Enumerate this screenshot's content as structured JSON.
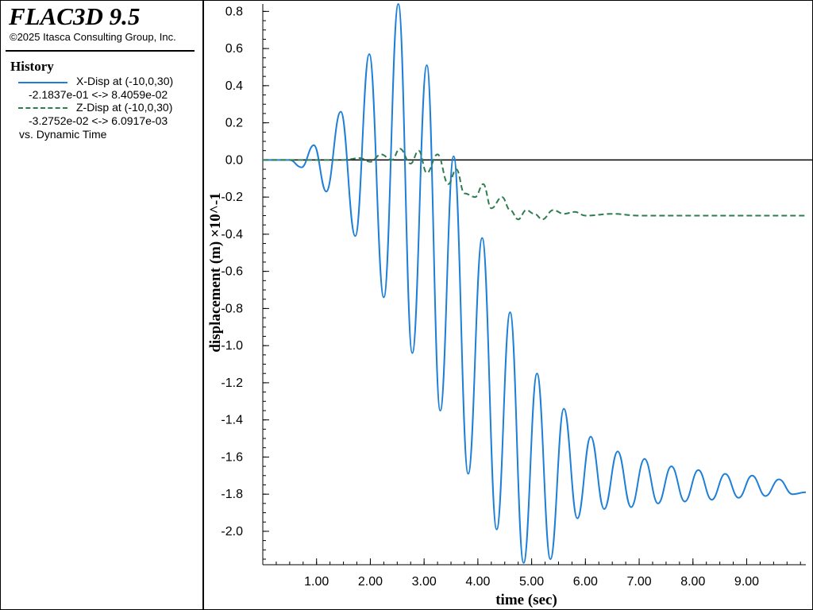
{
  "header": {
    "app_title": "FLAC3D 9.5",
    "copyright": "©2025 Itasca Consulting Group, Inc."
  },
  "legend": {
    "heading": "History",
    "entries": [
      {
        "name": "X-Disp at (-10,0,30)",
        "range": "-2.1837e-01 <->  8.4059e-02",
        "color": "#1e7fd8",
        "style": "solid"
      },
      {
        "name": "Z-Disp at (-10,0,30)",
        "range": "-3.2752e-02 <->  6.0917e-03",
        "color": "#2e7d4f",
        "style": "dashed"
      }
    ],
    "vs": "vs. Dynamic Time"
  },
  "chart_data": {
    "type": "line",
    "xlabel": "time (sec)",
    "ylabel": "displacement (m) ×10^-1",
    "xlim": [
      0,
      10.1
    ],
    "ylim": [
      -2.18,
      0.84
    ],
    "xticks": [
      1.0,
      2.0,
      3.0,
      4.0,
      5.0,
      6.0,
      7.0,
      8.0,
      9.0
    ],
    "xtick_labels": [
      "1.00",
      "2.00",
      "3.00",
      "4.00",
      "5.00",
      "6.00",
      "7.00",
      "8.00",
      "9.00"
    ],
    "yticks": [
      0.8,
      0.6,
      0.4,
      0.2,
      0.0,
      -0.2,
      -0.4,
      -0.6,
      -0.8,
      -1.0,
      -1.2,
      -1.4,
      -1.6,
      -1.8,
      -2.0
    ],
    "ytick_labels": [
      "0.8",
      "0.6",
      "0.4",
      "0.2",
      "0.0",
      "-0.2",
      "-0.4",
      "-0.6",
      "-0.8",
      "-1.0",
      "-1.2",
      "-1.4",
      "-1.6",
      "-1.8",
      "-2.0"
    ],
    "zero_line": true,
    "series": [
      {
        "name": "X-Disp at (-10,0,30)",
        "color": "#1e7fd8",
        "style": "solid",
        "x": [
          0.0,
          0.5,
          0.72,
          0.95,
          1.18,
          1.45,
          1.72,
          1.98,
          2.25,
          2.52,
          2.78,
          3.05,
          3.3,
          3.55,
          3.82,
          4.08,
          4.35,
          4.6,
          4.85,
          5.1,
          5.35,
          5.6,
          5.85,
          6.1,
          6.35,
          6.6,
          6.85,
          7.1,
          7.35,
          7.6,
          7.85,
          8.1,
          8.35,
          8.6,
          8.85,
          9.1,
          9.35,
          9.6,
          9.85,
          10.1
        ],
        "y": [
          0.0,
          0.0,
          -0.04,
          0.08,
          -0.17,
          0.26,
          -0.41,
          0.57,
          -0.74,
          0.84,
          -1.04,
          0.51,
          -1.35,
          0.02,
          -1.69,
          -0.42,
          -1.99,
          -0.82,
          -2.17,
          -1.15,
          -2.15,
          -1.34,
          -1.93,
          -1.49,
          -1.88,
          -1.57,
          -1.87,
          -1.61,
          -1.85,
          -1.65,
          -1.84,
          -1.67,
          -1.83,
          -1.69,
          -1.82,
          -1.7,
          -1.81,
          -1.72,
          -1.8,
          -1.79
        ]
      },
      {
        "name": "Z-Disp at (-10,0,30)",
        "color": "#2e7d4f",
        "style": "dashed",
        "x": [
          0.0,
          1.0,
          1.5,
          1.8,
          2.0,
          2.2,
          2.4,
          2.55,
          2.75,
          2.9,
          3.05,
          3.25,
          3.45,
          3.6,
          3.75,
          3.95,
          4.1,
          4.25,
          4.45,
          4.6,
          4.75,
          4.9,
          5.05,
          5.2,
          5.4,
          5.6,
          5.8,
          6.0,
          6.5,
          7.0,
          8.0,
          9.0,
          10.1
        ],
        "y": [
          0.0,
          0.0,
          0.0,
          0.01,
          -0.01,
          0.03,
          0.0,
          0.06,
          -0.02,
          0.05,
          -0.07,
          0.03,
          -0.13,
          -0.05,
          -0.18,
          -0.2,
          -0.13,
          -0.26,
          -0.2,
          -0.27,
          -0.32,
          -0.27,
          -0.29,
          -0.32,
          -0.27,
          -0.29,
          -0.28,
          -0.3,
          -0.29,
          -0.3,
          -0.3,
          -0.3,
          -0.3
        ]
      }
    ]
  }
}
